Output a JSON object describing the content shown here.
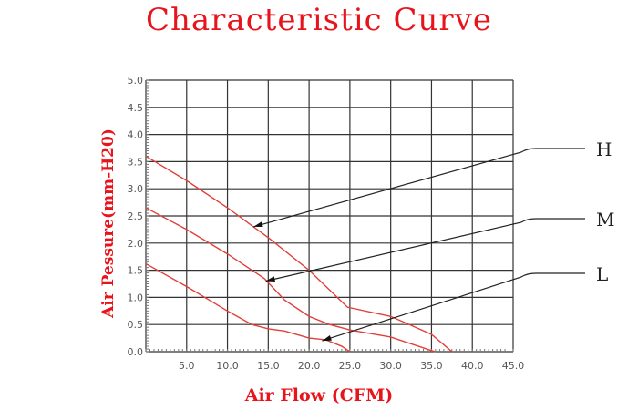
{
  "chart_data": {
    "type": "line",
    "title": "Characteristic Curve",
    "xlabel": "Air Flow (CFM)",
    "ylabel": "Air Pessure(mm-H20)",
    "xlim": [
      0,
      45
    ],
    "ylim": [
      0,
      5
    ],
    "xticks": [
      "5.0",
      "10.0",
      "15.0",
      "20.0",
      "25.0",
      "30.0",
      "35.0",
      "40.0",
      "45.0"
    ],
    "yticks": [
      "0.0",
      "0.5",
      "1.0",
      "1.5",
      "2.0",
      "2.5",
      "3.0",
      "3.5",
      "4.0",
      "4.5",
      "5.0"
    ],
    "grid": true,
    "colors": {
      "curve": "#e0403a",
      "text": "#e8141c",
      "grid": "#333333"
    },
    "series": [
      {
        "name": "H",
        "x": [
          0,
          5,
          10,
          15,
          20,
          24.7,
          30,
          35,
          37.5
        ],
        "y": [
          3.6,
          3.15,
          2.65,
          2.1,
          1.5,
          0.82,
          0.65,
          0.32,
          0
        ]
      },
      {
        "name": "M",
        "x": [
          0,
          5,
          10,
          14.5,
          17,
          20,
          22.5,
          25,
          30,
          35,
          35.5
        ],
        "y": [
          2.65,
          2.25,
          1.8,
          1.35,
          0.95,
          0.65,
          0.5,
          0.4,
          0.27,
          0.02,
          0
        ]
      },
      {
        "name": "L",
        "x": [
          0,
          5,
          10,
          13,
          15,
          17,
          20,
          22,
          24,
          25
        ],
        "y": [
          1.62,
          1.2,
          0.75,
          0.5,
          0.42,
          0.38,
          0.25,
          0.22,
          0.1,
          0
        ]
      }
    ],
    "annotations": [
      {
        "label": "H",
        "point": [
          13.2,
          2.3
        ]
      },
      {
        "label": "M",
        "point": [
          14.7,
          1.3
        ]
      },
      {
        "label": "L",
        "point": [
          21.6,
          0.2
        ]
      }
    ]
  }
}
